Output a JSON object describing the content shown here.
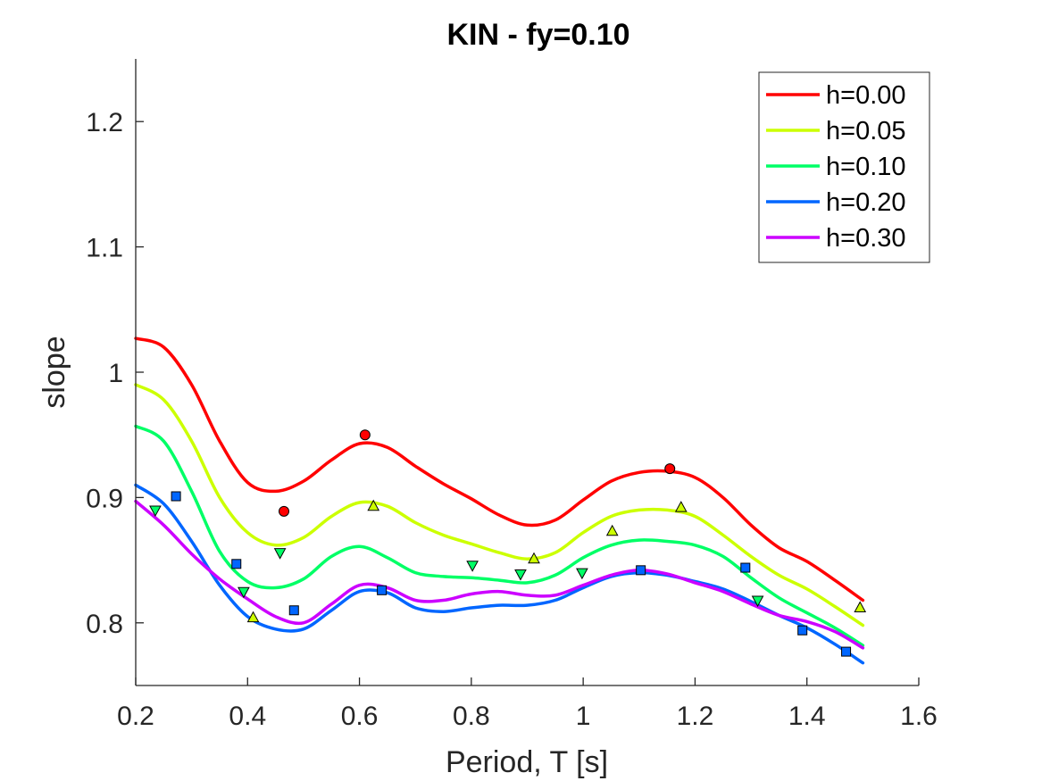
{
  "chart_data": {
    "type": "line",
    "title": "KIN - fy=0.10",
    "xlabel": "Period, T [s]",
    "ylabel": "slope",
    "xlim": [
      0.2,
      1.6
    ],
    "ylim": [
      0.75,
      1.25
    ],
    "xticks": [
      "0.2",
      "0.4",
      "0.6",
      "0.8",
      "1",
      "1.2",
      "1.4",
      "1.6"
    ],
    "yticks": [
      "0.8",
      "0.9",
      "1",
      "1.1",
      "1.2"
    ],
    "grid": false,
    "legend_position": "top-right",
    "series": [
      {
        "name": "h=0.00",
        "color": "#ff0000",
        "marker": "circle",
        "curve": [
          [
            0.2,
            1.027
          ],
          [
            0.25,
            1.02
          ],
          [
            0.3,
            0.99
          ],
          [
            0.35,
            0.945
          ],
          [
            0.4,
            0.912
          ],
          [
            0.45,
            0.905
          ],
          [
            0.5,
            0.913
          ],
          [
            0.55,
            0.93
          ],
          [
            0.6,
            0.943
          ],
          [
            0.65,
            0.94
          ],
          [
            0.7,
            0.925
          ],
          [
            0.75,
            0.911
          ],
          [
            0.8,
            0.899
          ],
          [
            0.85,
            0.886
          ],
          [
            0.9,
            0.878
          ],
          [
            0.95,
            0.882
          ],
          [
            1.0,
            0.898
          ],
          [
            1.05,
            0.913
          ],
          [
            1.1,
            0.92
          ],
          [
            1.15,
            0.921
          ],
          [
            1.2,
            0.916
          ],
          [
            1.25,
            0.9
          ],
          [
            1.3,
            0.878
          ],
          [
            1.35,
            0.86
          ],
          [
            1.4,
            0.849
          ],
          [
            1.45,
            0.834
          ],
          [
            1.5,
            0.818
          ]
        ],
        "points": [
          [
            0.465,
            0.889
          ],
          [
            0.61,
            0.95
          ],
          [
            1.155,
            0.923
          ]
        ]
      },
      {
        "name": "h=0.05",
        "color": "#ccff00",
        "marker": "triangle-up",
        "curve": [
          [
            0.2,
            0.99
          ],
          [
            0.25,
            0.978
          ],
          [
            0.3,
            0.945
          ],
          [
            0.35,
            0.9
          ],
          [
            0.4,
            0.872
          ],
          [
            0.45,
            0.862
          ],
          [
            0.5,
            0.868
          ],
          [
            0.55,
            0.885
          ],
          [
            0.6,
            0.896
          ],
          [
            0.65,
            0.893
          ],
          [
            0.7,
            0.88
          ],
          [
            0.75,
            0.87
          ],
          [
            0.8,
            0.863
          ],
          [
            0.85,
            0.856
          ],
          [
            0.9,
            0.851
          ],
          [
            0.95,
            0.856
          ],
          [
            1.0,
            0.872
          ],
          [
            1.05,
            0.885
          ],
          [
            1.1,
            0.89
          ],
          [
            1.15,
            0.89
          ],
          [
            1.2,
            0.885
          ],
          [
            1.25,
            0.87
          ],
          [
            1.3,
            0.853
          ],
          [
            1.35,
            0.838
          ],
          [
            1.4,
            0.827
          ],
          [
            1.45,
            0.813
          ],
          [
            1.5,
            0.798
          ]
        ],
        "points": [
          [
            0.41,
            0.804
          ],
          [
            0.625,
            0.893
          ],
          [
            0.912,
            0.851
          ],
          [
            1.052,
            0.873
          ],
          [
            1.175,
            0.892
          ],
          [
            1.495,
            0.812
          ]
        ]
      },
      {
        "name": "h=0.10",
        "color": "#00ff66",
        "marker": "triangle-down",
        "curve": [
          [
            0.2,
            0.957
          ],
          [
            0.25,
            0.945
          ],
          [
            0.3,
            0.905
          ],
          [
            0.35,
            0.857
          ],
          [
            0.4,
            0.833
          ],
          [
            0.45,
            0.828
          ],
          [
            0.5,
            0.835
          ],
          [
            0.55,
            0.853
          ],
          [
            0.6,
            0.861
          ],
          [
            0.65,
            0.852
          ],
          [
            0.7,
            0.84
          ],
          [
            0.75,
            0.837
          ],
          [
            0.8,
            0.836
          ],
          [
            0.85,
            0.834
          ],
          [
            0.9,
            0.832
          ],
          [
            0.95,
            0.838
          ],
          [
            1.0,
            0.852
          ],
          [
            1.05,
            0.862
          ],
          [
            1.1,
            0.866
          ],
          [
            1.15,
            0.865
          ],
          [
            1.2,
            0.862
          ],
          [
            1.25,
            0.853
          ],
          [
            1.3,
            0.836
          ],
          [
            1.35,
            0.82
          ],
          [
            1.4,
            0.808
          ],
          [
            1.45,
            0.796
          ],
          [
            1.5,
            0.782
          ]
        ],
        "points": [
          [
            0.235,
            0.89
          ],
          [
            0.393,
            0.825
          ],
          [
            0.458,
            0.856
          ],
          [
            0.802,
            0.846
          ],
          [
            0.888,
            0.839
          ],
          [
            0.998,
            0.84
          ],
          [
            1.312,
            0.818
          ]
        ]
      },
      {
        "name": "h=0.20",
        "color": "#0066ff",
        "marker": "square",
        "curve": [
          [
            0.2,
            0.91
          ],
          [
            0.25,
            0.895
          ],
          [
            0.3,
            0.865
          ],
          [
            0.35,
            0.83
          ],
          [
            0.4,
            0.805
          ],
          [
            0.45,
            0.795
          ],
          [
            0.5,
            0.795
          ],
          [
            0.55,
            0.81
          ],
          [
            0.6,
            0.825
          ],
          [
            0.65,
            0.824
          ],
          [
            0.7,
            0.812
          ],
          [
            0.75,
            0.809
          ],
          [
            0.8,
            0.812
          ],
          [
            0.85,
            0.814
          ],
          [
            0.9,
            0.814
          ],
          [
            0.95,
            0.818
          ],
          [
            1.0,
            0.828
          ],
          [
            1.05,
            0.837
          ],
          [
            1.1,
            0.84
          ],
          [
            1.15,
            0.838
          ],
          [
            1.2,
            0.833
          ],
          [
            1.25,
            0.827
          ],
          [
            1.3,
            0.817
          ],
          [
            1.35,
            0.806
          ],
          [
            1.4,
            0.796
          ],
          [
            1.45,
            0.783
          ],
          [
            1.5,
            0.768
          ]
        ],
        "points": [
          [
            0.272,
            0.901
          ],
          [
            0.38,
            0.847
          ],
          [
            0.483,
            0.81
          ],
          [
            0.64,
            0.826
          ],
          [
            1.103,
            0.842
          ],
          [
            1.29,
            0.844
          ],
          [
            1.392,
            0.794
          ],
          [
            1.47,
            0.777
          ]
        ]
      },
      {
        "name": "h=0.30",
        "color": "#cc00ff",
        "marker": "none",
        "curve": [
          [
            0.2,
            0.897
          ],
          [
            0.25,
            0.878
          ],
          [
            0.3,
            0.855
          ],
          [
            0.35,
            0.835
          ],
          [
            0.4,
            0.819
          ],
          [
            0.45,
            0.805
          ],
          [
            0.5,
            0.8
          ],
          [
            0.55,
            0.815
          ],
          [
            0.6,
            0.83
          ],
          [
            0.65,
            0.828
          ],
          [
            0.7,
            0.818
          ],
          [
            0.75,
            0.818
          ],
          [
            0.8,
            0.823
          ],
          [
            0.85,
            0.825
          ],
          [
            0.9,
            0.822
          ],
          [
            0.95,
            0.822
          ],
          [
            1.0,
            0.83
          ],
          [
            1.05,
            0.838
          ],
          [
            1.1,
            0.842
          ],
          [
            1.15,
            0.839
          ],
          [
            1.2,
            0.832
          ],
          [
            1.25,
            0.825
          ],
          [
            1.3,
            0.815
          ],
          [
            1.35,
            0.806
          ],
          [
            1.4,
            0.801
          ],
          [
            1.45,
            0.793
          ],
          [
            1.5,
            0.78
          ]
        ],
        "points": []
      }
    ]
  }
}
